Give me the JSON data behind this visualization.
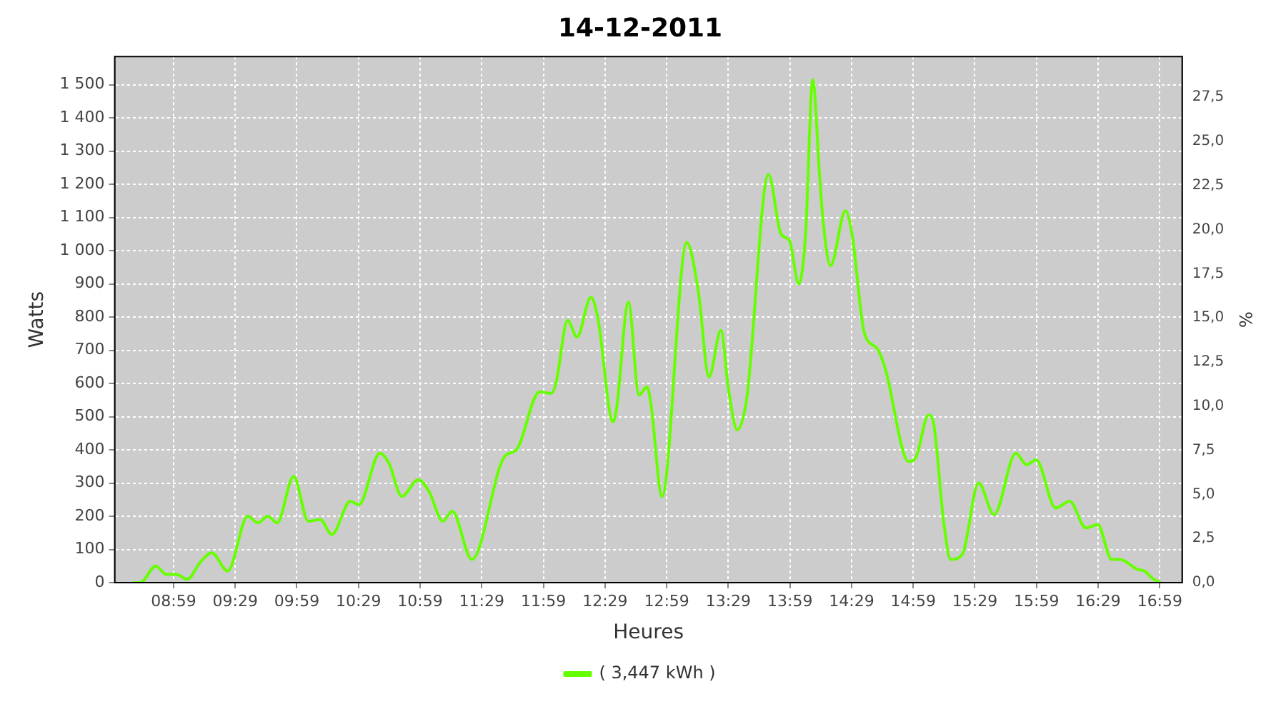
{
  "chart_data": {
    "type": "line",
    "title": "14-12-2011",
    "xlabel": "Heures",
    "ylabel": "Watts",
    "y2label": "%",
    "xlim": [
      8.506,
      17.165
    ],
    "xticks": [
      {
        "value": 8.9833,
        "label": "08:59"
      },
      {
        "value": 9.4833,
        "label": "09:29"
      },
      {
        "value": 9.9833,
        "label": "09:59"
      },
      {
        "value": 10.4833,
        "label": "10:29"
      },
      {
        "value": 10.9833,
        "label": "10:59"
      },
      {
        "value": 11.4833,
        "label": "11:29"
      },
      {
        "value": 11.9833,
        "label": "11:59"
      },
      {
        "value": 12.4833,
        "label": "12:29"
      },
      {
        "value": 12.9833,
        "label": "12:59"
      },
      {
        "value": 13.4833,
        "label": "13:29"
      },
      {
        "value": 13.9833,
        "label": "13:59"
      },
      {
        "value": 14.4833,
        "label": "14:29"
      },
      {
        "value": 14.9833,
        "label": "14:59"
      },
      {
        "value": 15.4833,
        "label": "15:29"
      },
      {
        "value": 15.9833,
        "label": "15:59"
      },
      {
        "value": 16.4833,
        "label": "16:29"
      },
      {
        "value": 16.9833,
        "label": "16:59"
      }
    ],
    "ylim": [
      0,
      1585
    ],
    "yticks": [
      0,
      100,
      200,
      300,
      400,
      500,
      600,
      700,
      800,
      900,
      {
        "value": 1000,
        "label": "1 000"
      },
      {
        "value": 1100,
        "label": "1 100"
      },
      {
        "value": 1200,
        "label": "1 200"
      },
      {
        "value": 1300,
        "label": "1 300"
      },
      {
        "value": 1400,
        "label": "1 400"
      },
      {
        "value": 1500,
        "label": "1 500"
      }
    ],
    "y2lim": [
      0,
      29.8
    ],
    "y2ticks": [
      {
        "value": 0,
        "label": "0,0"
      },
      {
        "value": 2.5,
        "label": "2,5"
      },
      {
        "value": 5,
        "label": "5,0"
      },
      {
        "value": 7.5,
        "label": "7,5"
      },
      {
        "value": 10,
        "label": "10,0"
      },
      {
        "value": 12.5,
        "label": "12,5"
      },
      {
        "value": 15,
        "label": "15,0"
      },
      {
        "value": 17.5,
        "label": "17,5"
      },
      {
        "value": 20,
        "label": "20,0"
      },
      {
        "value": 22.5,
        "label": "22,5"
      },
      {
        "value": 25,
        "label": "25,0"
      },
      {
        "value": 27.5,
        "label": "27,5"
      }
    ],
    "grid": true,
    "legend": "bottom",
    "marker": "none",
    "line_style": "solid",
    "series": [
      {
        "name": "( 3,447 kWh )",
        "color": "#66ff00",
        "x": [
          8.657,
          8.714,
          8.839,
          8.923,
          9.009,
          9.093,
          9.207,
          9.293,
          9.423,
          9.585,
          9.668,
          9.748,
          9.824,
          9.957,
          10.077,
          10.173,
          10.267,
          10.418,
          10.486,
          10.657,
          10.73,
          10.835,
          10.968,
          11.055,
          11.168,
          11.244,
          11.403,
          11.668,
          11.764,
          11.952,
          12.048,
          12.085,
          12.18,
          12.256,
          12.369,
          12.426,
          12.548,
          12.577,
          12.673,
          12.759,
          12.824,
          12.855,
          12.946,
          13.146,
          13.241,
          13.327,
          13.423,
          13.486,
          13.555,
          13.631,
          13.809,
          13.911,
          13.98,
          14.055,
          14.111,
          14.168,
          14.225,
          14.252,
          14.313,
          14.434,
          14.491,
          14.585,
          14.691,
          14.756,
          14.946,
          15.002,
          15.108,
          15.146,
          15.23,
          15.286,
          15.381,
          15.514,
          15.639,
          15.816,
          15.903,
          15.98,
          16.139,
          16.252,
          16.384,
          16.48,
          16.593,
          16.661,
          16.801,
          16.858,
          16.934,
          16.991
        ],
        "values": [
          0,
          0,
          50,
          25,
          25,
          10,
          65,
          90,
          35,
          200,
          180,
          200,
          180,
          320,
          185,
          190,
          145,
          245,
          235,
          390,
          360,
          260,
          310,
          275,
          185,
          215,
          70,
          380,
          400,
          575,
          570,
          600,
          790,
          740,
          860,
          795,
          485,
          525,
          845,
          565,
          590,
          540,
          260,
          1025,
          875,
          620,
          760,
          580,
          460,
          550,
          1230,
          1050,
          1030,
          900,
          1055,
          1515,
          1220,
          1090,
          955,
          1120,
          1040,
          755,
          705,
          645,
          365,
          375,
          505,
          485,
          185,
          70,
          85,
          300,
          205,
          390,
          355,
          370,
          225,
          245,
          165,
          175,
          70,
          70,
          40,
          35,
          10,
          0
        ]
      }
    ]
  }
}
